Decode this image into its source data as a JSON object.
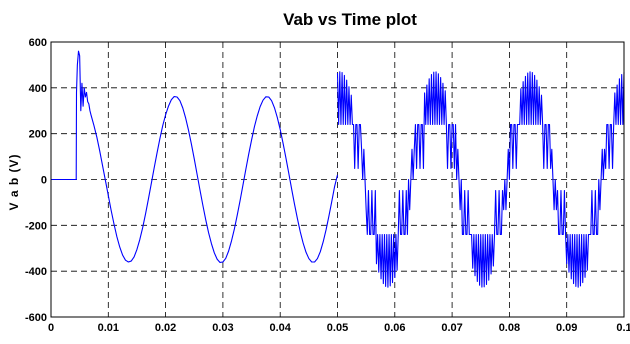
{
  "chart_data": {
    "type": "line",
    "title": "Vab vs Time plot",
    "xlabel": "",
    "ylabel": "V a b  (V)",
    "xlim": [
      0,
      0.1
    ],
    "ylim": [
      -600,
      600
    ],
    "grid": true,
    "x_ticks": [
      0,
      0.01,
      0.02,
      0.03,
      0.04,
      0.05,
      0.06,
      0.07,
      0.08,
      0.09,
      0.1
    ],
    "x_tick_labels": [
      "0",
      "0.01",
      "0.02",
      "0.03",
      "0.04",
      "0.05",
      "0.06",
      "0.07",
      "0.08",
      "0.09",
      "0.1"
    ],
    "y_ticks": [
      -600,
      -400,
      -200,
      0,
      200,
      400,
      600
    ],
    "y_tick_labels": [
      "-600",
      "-400",
      "-200",
      "0",
      "200",
      "400",
      "600"
    ],
    "series": [
      {
        "color": "#0000ff",
        "x": [
          0,
          0.0044,
          0.00445,
          0.0046,
          0.0048,
          0.005,
          0.0052,
          0.0054,
          0.0056,
          0.0058,
          0.006,
          0.0062,
          0.0064,
          0.0066,
          0.0068,
          0.007,
          0.0075,
          0.008,
          0.0085,
          0.009,
          0.0095,
          0.01,
          0.0105,
          0.011,
          0.0115,
          0.012,
          0.0125,
          0.013,
          0.0135,
          0.014,
          0.0145,
          0.015,
          0.0155,
          0.016,
          0.0165,
          0.017,
          0.0175,
          0.018,
          0.0185,
          0.019,
          0.0195,
          0.02,
          0.0205,
          0.021,
          0.0215,
          0.022,
          0.0225,
          0.023,
          0.0235,
          0.024,
          0.0245,
          0.025,
          0.0255,
          0.026,
          0.0265,
          0.027,
          0.0275,
          0.028,
          0.0285,
          0.029,
          0.0295,
          0.03,
          0.0305,
          0.031,
          0.0315,
          0.032,
          0.0325,
          0.033,
          0.0335,
          0.034,
          0.0345,
          0.035,
          0.0355,
          0.036,
          0.0365,
          0.037,
          0.0375,
          0.038,
          0.0385,
          0.039,
          0.0395,
          0.04,
          0.0405,
          0.041,
          0.0415,
          0.042,
          0.0425,
          0.043,
          0.0435,
          0.044,
          0.0445,
          0.045,
          0.0455,
          0.046,
          0.0465,
          0.047,
          0.0475,
          0.048,
          0.0485,
          0.049,
          0.0495,
          0.05
        ],
        "y": [
          0,
          0,
          380,
          500,
          560,
          540,
          300,
          420,
          320,
          400,
          360,
          380,
          340,
          330,
          300,
          280,
          235,
          185,
          125,
          60,
          -5,
          -70,
          -135,
          -195,
          -250,
          -295,
          -330,
          -352,
          -360,
          -356,
          -338,
          -305,
          -262,
          -210,
          -150,
          -85,
          -18,
          50,
          115,
          178,
          235,
          282,
          320,
          348,
          362,
          360,
          344,
          312,
          268,
          215,
          155,
          90,
          22,
          -46,
          -112,
          -175,
          -232,
          -280,
          -320,
          -348,
          -362,
          -360,
          -344,
          -312,
          -268,
          -216,
          -156,
          -92,
          -24,
          44,
          110,
          172,
          230,
          278,
          318,
          346,
          361,
          360,
          344,
          313,
          270,
          218,
          158,
          94,
          27,
          -42,
          -108,
          -170,
          -228,
          -277,
          -317,
          -345,
          -360,
          -360,
          -345,
          -315,
          -272,
          -220,
          -160,
          -96,
          -30,
          20
        ]
      }
    ],
    "inverter_segment": {
      "x_start": 0.05,
      "x_end": 0.1,
      "period": 0.0166,
      "level_1": 240,
      "level_2_max": 470,
      "level_2_min": 360
    }
  }
}
